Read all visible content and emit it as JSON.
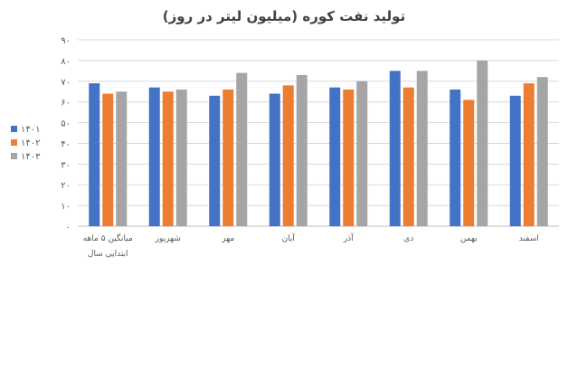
{
  "chart_data": {
    "type": "bar",
    "title": "تولید نفت کوره (میلیون لیتر در روز)",
    "categories": [
      [
        "میانگین ۵ ماهه",
        "ابتدایی سال"
      ],
      [
        "شهریور"
      ],
      [
        "مهر"
      ],
      [
        "آبان"
      ],
      [
        "آذر"
      ],
      [
        "دی"
      ],
      [
        "بهمن"
      ],
      [
        "اسفند"
      ]
    ],
    "series": [
      {
        "name": "۱۴۰۱",
        "color": "#4472C4",
        "values": [
          69,
          67,
          63,
          64,
          67,
          75,
          66,
          63
        ]
      },
      {
        "name": "۱۴۰۲",
        "color": "#ED7D31",
        "values": [
          64,
          65,
          66,
          68,
          66,
          67,
          61,
          69
        ]
      },
      {
        "name": "۱۴۰۳",
        "color": "#A5A5A5",
        "values": [
          65,
          66,
          74,
          73,
          70,
          75,
          80,
          72
        ]
      }
    ],
    "y_ticks": [
      "۰",
      "۱۰",
      "۲۰",
      "۳۰",
      "۴۰",
      "۵۰",
      "۶۰",
      "۷۰",
      "۸۰",
      "۹۰"
    ],
    "ylim": [
      0,
      90
    ],
    "grid": true,
    "legend_position": "left"
  }
}
